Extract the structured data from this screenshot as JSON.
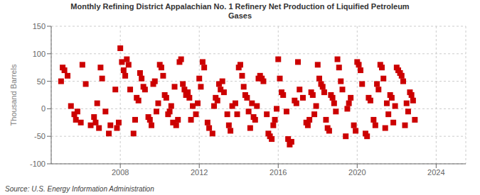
{
  "chart_data": {
    "type": "scatter",
    "title": "Monthly Refining District Appalachian No. 1 Refinery Net Production of Liquified Petroleum\nGases",
    "ylabel": "Thousand Barrels",
    "annotation": "Source: U.S. Energy Information Administration",
    "color": "#cc0000",
    "marker": "square",
    "grid": true,
    "xlim": [
      2004.5,
      2025.5
    ],
    "xticks": [
      2008,
      2012,
      2016,
      2020,
      2024
    ],
    "ylim": [
      -100,
      150
    ],
    "yticks": [
      -100,
      -50,
      0,
      50,
      100,
      150
    ],
    "x": [
      2005.0,
      2005.08,
      2005.17,
      2005.33,
      2005.5,
      2005.67,
      2005.75,
      2005.83,
      2006.0,
      2006.08,
      2006.25,
      2006.5,
      2006.67,
      2006.75,
      2006.83,
      2006.92,
      2007.0,
      2007.08,
      2007.25,
      2007.42,
      2007.5,
      2007.75,
      2007.83,
      2007.92,
      2008.0,
      2008.08,
      2008.17,
      2008.25,
      2008.33,
      2008.42,
      2008.5,
      2008.67,
      2008.75,
      2008.83,
      2008.92,
      2009.0,
      2009.08,
      2009.17,
      2009.25,
      2009.42,
      2009.5,
      2009.58,
      2009.67,
      2009.75,
      2009.83,
      2009.92,
      2010.0,
      2010.08,
      2010.17,
      2010.25,
      2010.33,
      2010.42,
      2010.5,
      2010.58,
      2010.67,
      2010.75,
      2010.83,
      2010.92,
      2011.0,
      2011.08,
      2011.17,
      2011.25,
      2011.33,
      2011.42,
      2011.5,
      2011.58,
      2011.67,
      2011.83,
      2011.92,
      2012.0,
      2012.08,
      2012.17,
      2012.25,
      2012.42,
      2012.5,
      2012.67,
      2012.75,
      2012.83,
      2012.92,
      2013.0,
      2013.08,
      2013.17,
      2013.25,
      2013.42,
      2013.5,
      2013.58,
      2013.67,
      2013.83,
      2013.92,
      2014.0,
      2014.08,
      2014.17,
      2014.25,
      2014.33,
      2014.42,
      2014.5,
      2014.58,
      2014.67,
      2014.75,
      2014.83,
      2014.92,
      2015.0,
      2015.08,
      2015.17,
      2015.25,
      2015.42,
      2015.5,
      2015.58,
      2015.67,
      2015.75,
      2015.83,
      2015.92,
      2016.0,
      2016.08,
      2016.17,
      2016.25,
      2016.42,
      2016.5,
      2016.58,
      2016.67,
      2016.83,
      2016.92,
      2017.0,
      2017.08,
      2017.25,
      2017.42,
      2017.5,
      2017.58,
      2017.67,
      2017.75,
      2017.83,
      2017.92,
      2018.0,
      2018.08,
      2018.17,
      2018.25,
      2018.33,
      2018.42,
      2018.5,
      2018.58,
      2018.67,
      2018.75,
      2018.83,
      2018.92,
      2019.0,
      2019.08,
      2019.17,
      2019.25,
      2019.42,
      2019.5,
      2019.58,
      2019.67,
      2019.83,
      2019.92,
      2020.0,
      2020.08,
      2020.17,
      2020.25,
      2020.42,
      2020.5,
      2020.58,
      2020.67,
      2020.83,
      2020.92,
      2021.0,
      2021.08,
      2021.17,
      2021.25,
      2021.33,
      2021.42,
      2021.5,
      2021.58,
      2021.67,
      2021.75,
      2021.83,
      2021.92,
      2022.0,
      2022.08,
      2022.17,
      2022.25,
      2022.33,
      2022.42,
      2022.5,
      2022.58,
      2022.67,
      2022.75,
      2022.83,
      2022.92
    ],
    "values": [
      50,
      75,
      70,
      60,
      5,
      -10,
      -20,
      -5,
      -25,
      80,
      45,
      -30,
      -15,
      -25,
      10,
      -35,
      75,
      55,
      -5,
      -45,
      -30,
      35,
      -35,
      -25,
      110,
      85,
      70,
      60,
      90,
      80,
      35,
      -45,
      -20,
      20,
      15,
      65,
      55,
      40,
      35,
      -15,
      -20,
      -30,
      45,
      50,
      -5,
      10,
      80,
      75,
      60,
      25,
      20,
      -10,
      -5,
      5,
      -25,
      40,
      -30,
      -20,
      85,
      90,
      45,
      35,
      25,
      30,
      20,
      -20,
      5,
      -10,
      10,
      55,
      40,
      85,
      75,
      -25,
      -35,
      -45,
      5,
      20,
      15,
      45,
      35,
      50,
      30,
      -10,
      -30,
      -40,
      5,
      10,
      -10,
      75,
      80,
      60,
      40,
      25,
      20,
      -5,
      -35,
      10,
      -15,
      -20,
      5,
      55,
      60,
      55,
      50,
      -10,
      -45,
      -50,
      -55,
      -30,
      -20,
      0,
      90,
      55,
      30,
      25,
      -5,
      -55,
      -65,
      -60,
      15,
      10,
      85,
      35,
      20,
      -25,
      -30,
      -20,
      30,
      25,
      -10,
      5,
      80,
      55,
      45,
      40,
      30,
      -20,
      -35,
      -40,
      25,
      20,
      10,
      -5,
      90,
      75,
      50,
      35,
      -50,
      0,
      10,
      20,
      -30,
      -40,
      85,
      80,
      70,
      45,
      -45,
      -50,
      20,
      15,
      -20,
      -30,
      45,
      35,
      80,
      75,
      55,
      -35,
      10,
      -10,
      25,
      20,
      -25,
      5,
      75,
      70,
      65,
      60,
      50,
      -30,
      10,
      -5,
      30,
      25,
      15,
      -20
    ]
  }
}
